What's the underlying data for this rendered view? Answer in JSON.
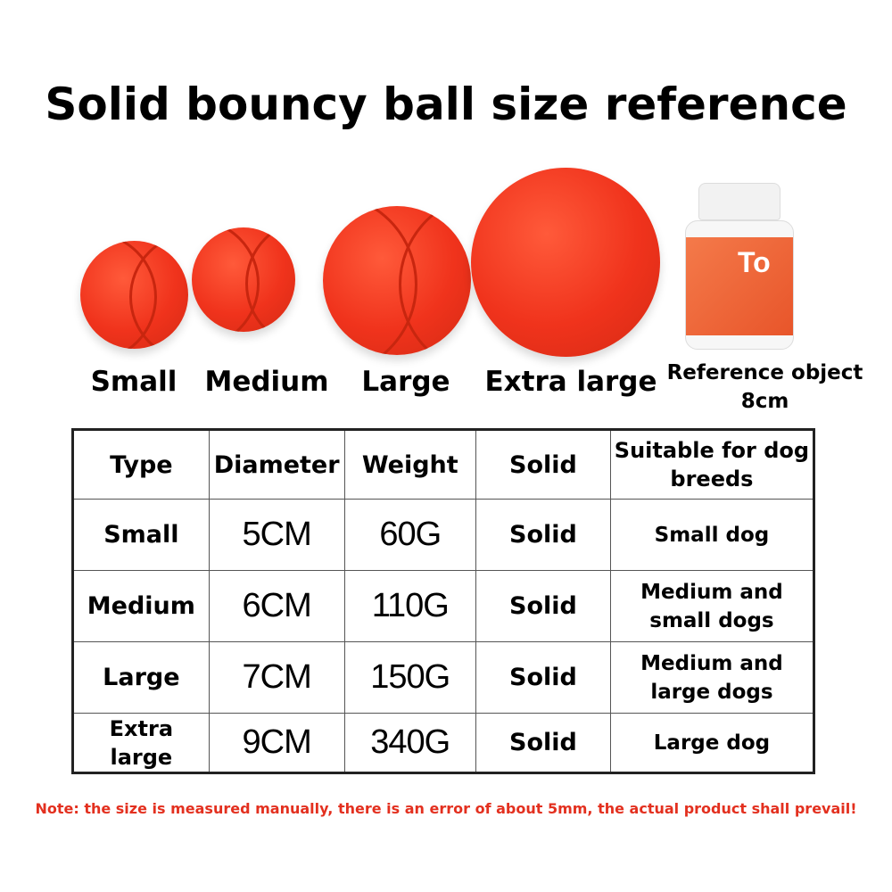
{
  "title": "Solid bouncy ball size reference",
  "balls": [
    {
      "label": "Small"
    },
    {
      "label": "Medium"
    },
    {
      "label": "Large"
    },
    {
      "label": "Extra large"
    }
  ],
  "ball_color": "#f0331c",
  "reference": {
    "label_line1": "Reference object",
    "label_line2": "8cm",
    "bottle_text": "To"
  },
  "table": {
    "headers": [
      "Type",
      "Diameter",
      "Weight",
      "Solid",
      "Suitable for dog breeds"
    ],
    "rows": [
      [
        "Small",
        "5CM",
        "60G",
        "Solid",
        "Small dog"
      ],
      [
        "Medium",
        "6CM",
        "110G",
        "Solid",
        "Medium and small dogs"
      ],
      [
        "Large",
        "7CM",
        "150G",
        "Solid",
        "Medium and large dogs"
      ],
      [
        "Extra large",
        "9CM",
        "340G",
        "Solid",
        "Large dog"
      ]
    ]
  },
  "note": "Note: the size is measured manually, there is an error of about 5mm, the actual product shall prevail!",
  "note_color": "#e3301f"
}
